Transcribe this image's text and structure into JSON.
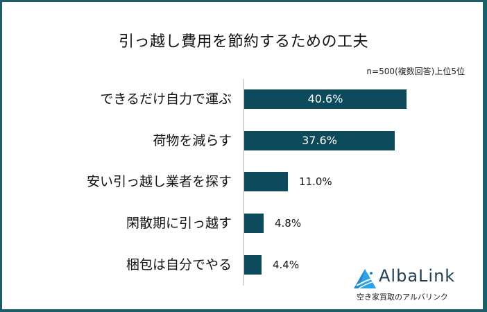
{
  "header": {
    "title": "引っ越し費用を節約するための工夫",
    "note": "n=500(複数回答)上位5位"
  },
  "colors": {
    "bar": "#0d4b5c",
    "border": "#1b5e6a",
    "axis": "#d5d5d5"
  },
  "logo": {
    "name": "AlbaLink",
    "tagline": "空き家買取のアルバリンク",
    "icon": "triangle-mountain-logo-icon"
  },
  "chart_data": {
    "type": "bar",
    "orientation": "horizontal",
    "title": "引っ越し費用を節約するための工夫",
    "subtitle": "n=500(複数回答)上位5位",
    "categories": [
      "できるだけ自力で運ぶ",
      "荷物を減らす",
      "安い引っ越し業者を探す",
      "閑散期に引っ越す",
      "梱包は自分でやる"
    ],
    "values": [
      40.6,
      37.6,
      11.0,
      4.8,
      4.4
    ],
    "value_labels": [
      "40.6%",
      "37.6%",
      "11.0%",
      "4.8%",
      "4.4%"
    ],
    "unit": "%",
    "xlabel": "",
    "ylabel": "",
    "grid": false,
    "legend": null
  }
}
